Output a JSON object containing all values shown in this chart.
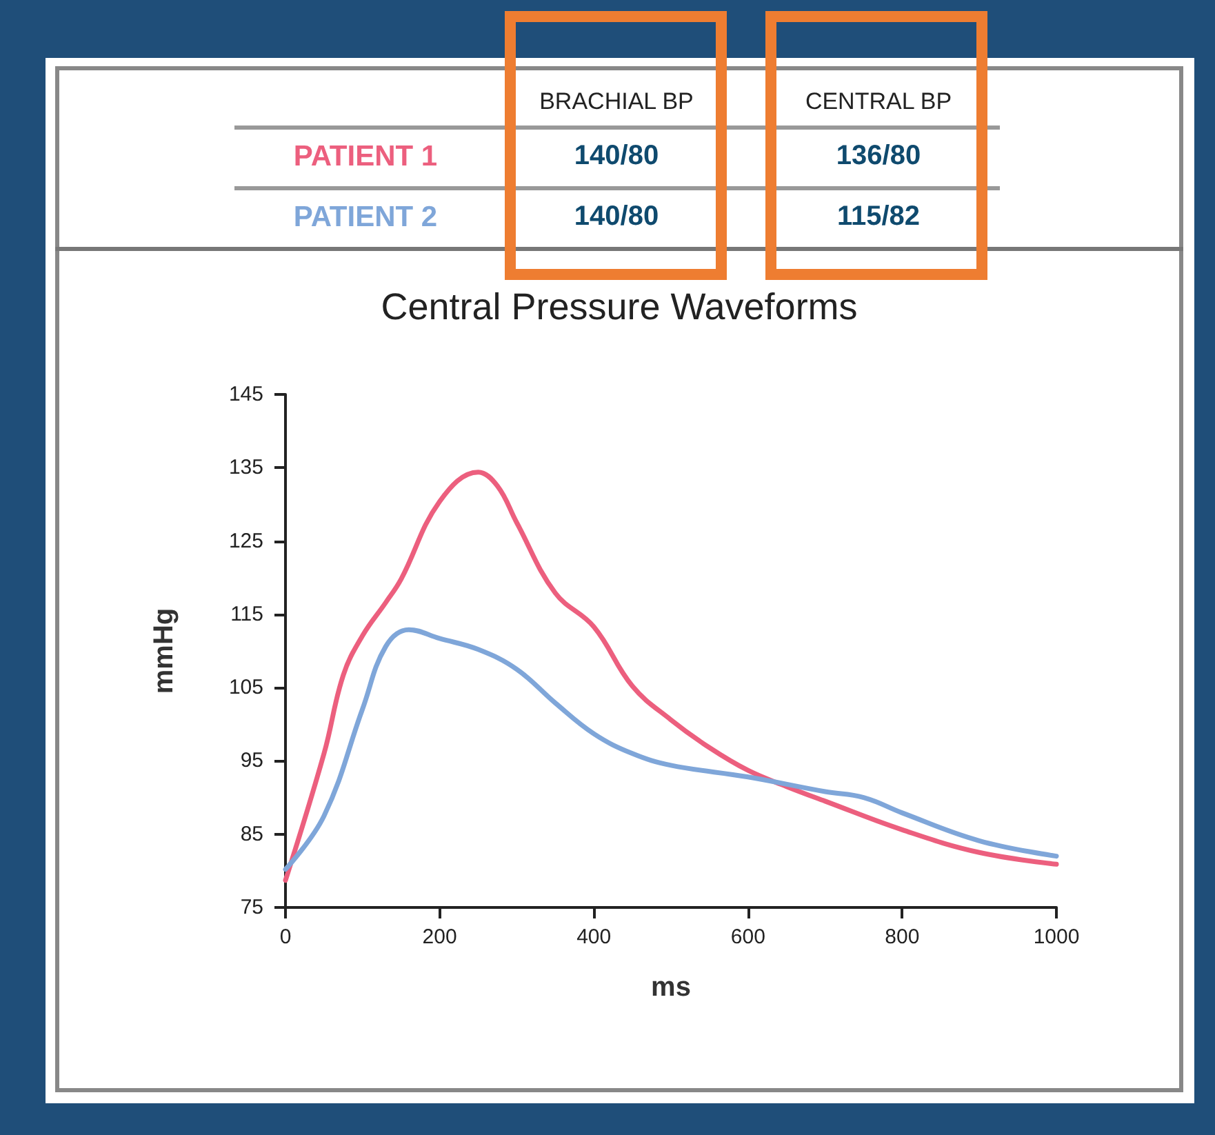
{
  "chart_data": {
    "type": "line",
    "title": "Central Pressure Waveforms",
    "xlabel": "ms",
    "ylabel": "mmHg",
    "annotations": [
      "BRACHIAL BP",
      "CENTRAL BP",
      "140/80",
      "136/80",
      "140/80",
      "115/82"
    ],
    "xlim": [
      0,
      1000
    ],
    "xticks": [
      0,
      200,
      400,
      600,
      800,
      1000
    ],
    "ylim": [
      75,
      145
    ],
    "yticks": [
      75,
      85,
      95,
      105,
      115,
      125,
      135,
      145
    ],
    "grid": false,
    "legend": false,
    "marker": "none",
    "line_style": "solid",
    "series": [
      {
        "name": "PATIENT 1",
        "color": "#ec5f7e",
        "x": [
          0,
          50,
          75,
          100,
          130,
          150,
          200,
          250,
          275,
          300,
          350,
          400,
          450,
          500,
          550,
          600,
          650,
          700,
          800,
          900,
          1000
        ],
        "values": [
          78.7,
          96,
          106.7,
          112.1,
          116.6,
          119.8,
          130.4,
          134.4,
          132.5,
          127.5,
          117.9,
          113.3,
          105.2,
          100.6,
          96.8,
          93.7,
          91.5,
          89.5,
          85.6,
          82.5,
          80.9
        ]
      },
      {
        "name": "PATIENT 2",
        "color": "#7fa6d9",
        "x": [
          0,
          50,
          100,
          130,
          160,
          200,
          250,
          300,
          350,
          400,
          450,
          500,
          600,
          700,
          750,
          800,
          900,
          1000
        ],
        "values": [
          80.2,
          87.5,
          102.1,
          110.6,
          112.9,
          111.7,
          110.2,
          107.5,
          102.9,
          98.7,
          96,
          94.4,
          92.8,
          90.8,
          90,
          87.9,
          84.1,
          82
        ]
      }
    ]
  }
}
